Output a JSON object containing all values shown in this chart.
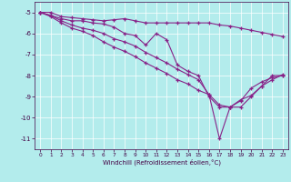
{
  "background_color": "#b3ecec",
  "line_color": "#882288",
  "grid_color": "#ffffff",
  "xlabel": "Windchill (Refroidissement éolien,°C)",
  "ylim": [
    -11.5,
    -4.5
  ],
  "xlim": [
    -0.5,
    23.5
  ],
  "yticks": [
    -11,
    -10,
    -9,
    -8,
    -7,
    -6,
    -5
  ],
  "xticks": [
    0,
    1,
    2,
    3,
    4,
    5,
    6,
    7,
    8,
    9,
    10,
    11,
    12,
    13,
    14,
    15,
    16,
    17,
    18,
    19,
    20,
    21,
    22,
    23
  ],
  "line1": [
    -5.0,
    -5.0,
    -5.2,
    -5.25,
    -5.3,
    -5.35,
    -5.4,
    -5.35,
    -5.3,
    -5.4,
    -5.5,
    -5.5,
    -5.5,
    -5.5,
    -5.5,
    -5.5,
    -5.5,
    -5.6,
    -5.65,
    -5.75,
    -5.85,
    -5.95,
    -6.05,
    -6.15
  ],
  "line2": [
    -5.0,
    -5.15,
    -5.3,
    -5.4,
    -5.4,
    -5.5,
    -5.55,
    -5.7,
    -6.0,
    -6.1,
    -6.55,
    -6.0,
    -6.3,
    -7.5,
    -7.8,
    -8.0,
    -9.0,
    -9.5,
    -9.5,
    -9.2,
    -8.6,
    -8.3,
    -8.1,
    -8.0
  ],
  "line3": [
    -5.0,
    -5.15,
    -5.4,
    -5.6,
    -5.75,
    -5.85,
    -6.0,
    -6.25,
    -6.4,
    -6.6,
    -6.9,
    -7.15,
    -7.4,
    -7.7,
    -7.95,
    -8.2,
    -8.9,
    -11.0,
    -9.5,
    -9.5,
    -9.0,
    -8.5,
    -8.0,
    -8.0
  ],
  "line4": [
    -5.0,
    -5.2,
    -5.5,
    -5.75,
    -5.9,
    -6.1,
    -6.4,
    -6.65,
    -6.85,
    -7.1,
    -7.4,
    -7.65,
    -7.9,
    -8.2,
    -8.4,
    -8.7,
    -8.9,
    -9.4,
    -9.5,
    -9.15,
    -8.95,
    -8.5,
    -8.2,
    -7.95
  ]
}
